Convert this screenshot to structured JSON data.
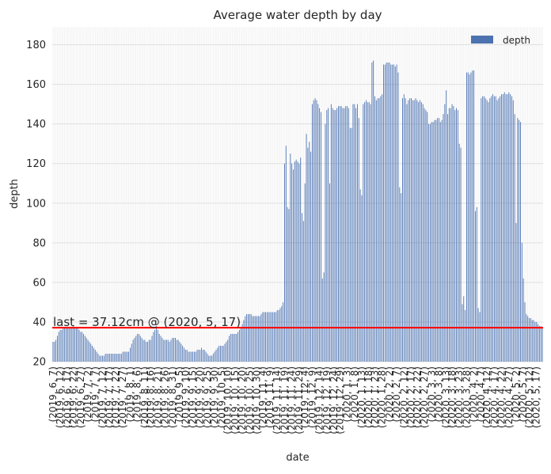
{
  "chart_data": {
    "type": "bar",
    "title": "Average water depth by day",
    "xlabel": "date",
    "ylabel": "depth",
    "ylim": [
      20,
      189
    ],
    "yticks": [
      20,
      40,
      60,
      80,
      100,
      120,
      140,
      160,
      180
    ],
    "grid": true,
    "legend": {
      "position": "top-right",
      "entries": [
        "depth"
      ]
    },
    "series_color": "#4c72b0",
    "annotation": {
      "text": "last = 37.12cm @ (2020, 5, 17)",
      "y": 37.12,
      "color": "#ff0000"
    },
    "x_tick_labels": [
      "(2019, 6, 7)",
      "(2019, 6, 12)",
      "(2019, 6, 17)",
      "(2019, 6, 22)",
      "(2019, 6, 27)",
      "(2019, 7, 2)",
      "(2019, 7, 7)",
      "(2019, 7, 12)",
      "(2019, 7, 17)",
      "(2019, 7, 22)",
      "(2019, 7, 27)",
      "(2019, 8, 1)",
      "(2019, 8, 6)",
      "(2019, 8, 11)",
      "(2019, 8, 16)",
      "(2019, 8, 21)",
      "(2019, 8, 26)",
      "(2019, 8, 31)",
      "(2019, 9, 5)",
      "(2019, 9, 10)",
      "(2019, 9, 15)",
      "(2019, 9, 20)",
      "(2019, 9, 25)",
      "(2019, 9, 30)",
      "(2019, 10, 5)",
      "(2019, 10, 10)",
      "(2019, 10, 15)",
      "(2019, 10, 20)",
      "(2019, 10, 25)",
      "(2019, 10, 30)",
      "(2019, 11, 4)",
      "(2019, 11, 9)",
      "(2019, 11, 14)",
      "(2019, 11, 19)",
      "(2019, 11, 24)",
      "(2019, 11, 29)",
      "(2019, 12, 4)",
      "(2019, 12, 9)",
      "(2019, 12, 14)",
      "(2019, 12, 19)",
      "(2019, 12, 24)",
      "(2019, 12, 29)",
      "(2020, 1, 3)",
      "(2020, 1, 8)",
      "(2020, 1, 13)",
      "(2020, 1, 18)",
      "(2020, 1, 23)",
      "(2020, 1, 28)",
      "(2020, 2, 2)",
      "(2020, 2, 7)",
      "(2020, 2, 12)",
      "(2020, 2, 17)",
      "(2020, 2, 22)",
      "(2020, 2, 27)",
      "(2020, 3, 3)",
      "(2020, 3, 8)",
      "(2020, 3, 13)",
      "(2020, 3, 18)",
      "(2020, 3, 23)",
      "(2020, 3, 28)",
      "(2020, 4, 2)",
      "(2020, 4, 7)",
      "(2020, 4, 12)",
      "(2020, 4, 17)",
      "(2020, 4, 22)",
      "(2020, 4, 27)",
      "(2020, 5, 2)",
      "(2020, 5, 7)",
      "(2020, 5, 12)",
      "(2020, 5, 17)"
    ],
    "values": [
      30,
      30,
      31,
      33,
      35,
      36,
      36,
      37,
      37,
      37,
      37,
      37,
      37,
      37,
      38,
      37,
      37,
      37,
      36,
      35,
      35,
      34,
      33,
      32,
      31,
      30,
      29,
      28,
      27,
      26,
      25,
      24,
      23,
      23,
      23,
      23,
      24,
      24,
      24,
      24,
      24,
      24,
      24,
      24,
      24,
      24,
      24,
      24,
      25,
      25,
      25,
      25,
      25,
      27,
      29,
      31,
      32,
      33,
      34,
      34,
      33,
      32,
      31,
      31,
      30,
      30,
      31,
      31,
      33,
      35,
      36,
      37,
      36,
      34,
      33,
      32,
      31,
      31,
      31,
      31,
      30,
      31,
      32,
      32,
      32,
      31,
      31,
      30,
      29,
      28,
      27,
      26,
      26,
      25,
      25,
      25,
      25,
      25,
      25,
      26,
      26,
      26,
      27,
      26,
      26,
      25,
      24,
      23,
      23,
      23,
      24,
      25,
      26,
      27,
      28,
      28,
      28,
      28,
      29,
      30,
      31,
      33,
      34,
      34,
      34,
      34,
      34,
      35,
      36,
      37,
      39,
      41,
      43,
      44,
      44,
      44,
      44,
      43,
      43,
      43,
      43,
      43,
      43,
      44,
      45,
      45,
      45,
      45,
      45,
      45,
      45,
      45,
      45,
      45,
      46,
      46,
      47,
      48,
      50,
      120,
      129,
      98,
      97,
      125,
      120,
      117,
      121,
      122,
      121,
      120,
      123,
      95,
      91,
      110,
      135,
      128,
      131,
      126,
      150,
      152,
      153,
      152,
      150,
      148,
      146,
      62,
      65,
      140,
      147,
      148,
      110,
      150,
      148,
      147,
      147,
      148,
      149,
      149,
      149,
      148,
      148,
      149,
      149,
      148,
      138,
      138,
      150,
      150,
      148,
      150,
      143,
      107,
      104,
      150,
      151,
      152,
      151,
      151,
      150,
      171,
      172,
      154,
      152,
      153,
      153,
      154,
      155,
      170,
      170,
      171,
      171,
      171,
      170,
      170,
      170,
      169,
      170,
      166,
      108,
      105,
      153,
      155,
      153,
      150,
      152,
      153,
      153,
      152,
      152,
      153,
      152,
      151,
      152,
      151,
      150,
      148,
      147,
      146,
      140,
      140,
      141,
      141,
      142,
      142,
      143,
      143,
      141,
      142,
      145,
      150,
      157,
      145,
      148,
      148,
      150,
      149,
      147,
      148,
      147,
      130,
      128,
      49,
      53,
      46,
      166,
      166,
      165,
      166,
      167,
      167,
      96,
      98,
      47,
      45,
      153,
      154,
      154,
      153,
      152,
      151,
      153,
      154,
      155,
      154,
      154,
      152,
      153,
      154,
      155,
      155,
      156,
      155,
      155,
      156,
      155,
      154,
      152,
      145,
      90,
      143,
      142,
      141,
      80,
      62,
      50,
      44,
      43,
      42,
      42,
      41,
      41,
      40,
      40,
      39,
      38,
      38,
      37.12
    ]
  }
}
